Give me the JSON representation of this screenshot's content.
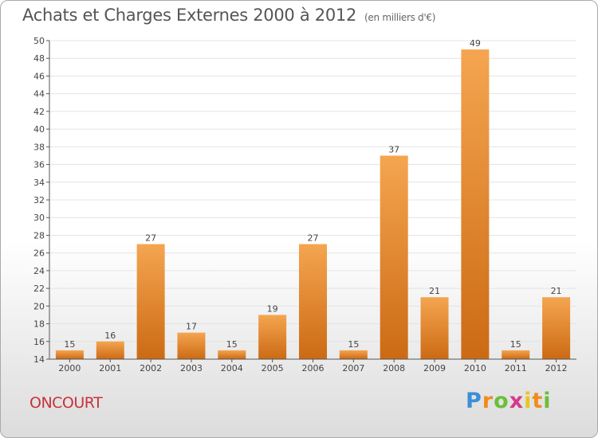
{
  "header": {
    "title": "Achats et Charges Externes 2000 à 2012",
    "subtitle": "(en milliers d'€)"
  },
  "footer": {
    "place": "ONCOURT",
    "logo": "Proxiti"
  },
  "colors": {
    "bar_top": "#f5a550",
    "bar_bottom": "#cc6a14",
    "axis": "#555555",
    "grid": "#e4e4e4"
  },
  "chart_data": {
    "type": "bar",
    "title": "Achats et Charges Externes 2000 à 2012",
    "subtitle": "(en milliers d'€)",
    "categories": [
      "2000",
      "2001",
      "2002",
      "2003",
      "2004",
      "2005",
      "2006",
      "2007",
      "2008",
      "2009",
      "2010",
      "2011",
      "2012"
    ],
    "values": [
      15,
      16,
      27,
      17,
      15,
      19,
      27,
      15,
      37,
      21,
      49,
      15,
      21
    ],
    "ylim": [
      14,
      50
    ],
    "yticks": [
      14,
      16,
      18,
      20,
      22,
      24,
      26,
      28,
      30,
      32,
      34,
      36,
      38,
      40,
      42,
      44,
      46,
      48,
      50
    ],
    "grid": true,
    "data_labels": true
  }
}
